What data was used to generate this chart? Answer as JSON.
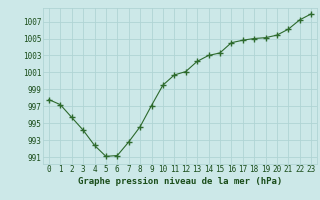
{
  "x": [
    0,
    1,
    2,
    3,
    4,
    5,
    6,
    7,
    8,
    9,
    10,
    11,
    12,
    13,
    14,
    15,
    16,
    17,
    18,
    19,
    20,
    21,
    22,
    23
  ],
  "y": [
    997.8,
    997.2,
    995.7,
    994.2,
    992.4,
    991.1,
    991.2,
    992.8,
    994.6,
    997.1,
    999.5,
    1000.7,
    1001.1,
    1002.3,
    1003.0,
    1003.3,
    1004.5,
    1004.8,
    1005.0,
    1005.1,
    1005.4,
    1006.1,
    1007.2,
    1007.9
  ],
  "line_color": "#2d6a2d",
  "marker": "+",
  "bg_color": "#cce8e8",
  "grid_color": "#b0d4d4",
  "xlabel": "Graphe pression niveau de la mer (hPa)",
  "ylabel_ticks": [
    991,
    993,
    995,
    997,
    999,
    1001,
    1003,
    1005,
    1007
  ],
  "ylim": [
    990.2,
    1008.6
  ],
  "xlim": [
    -0.5,
    23.5
  ],
  "title_color": "#1a4d1a",
  "xlabel_fontsize": 6.5,
  "tick_fontsize": 5.5
}
